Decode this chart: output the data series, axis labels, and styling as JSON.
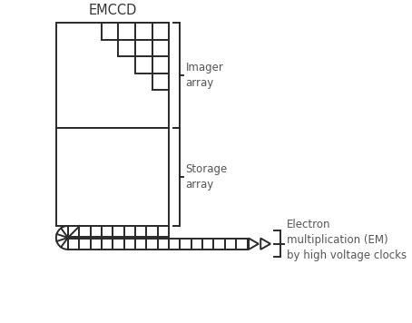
{
  "title": "EMCCD",
  "label_color": "#555555",
  "line_color": "#2a2a2a",
  "bg_color": "#ffffff",
  "imager_label": "Imager\narray",
  "storage_label": "Storage\narray",
  "em_label": "Electron\nmultiplication (EM)\nby high voltage clocks",
  "figsize": [
    4.54,
    3.56
  ],
  "dpi": 100,
  "xlim": [
    0,
    9
  ],
  "ylim": [
    0,
    9
  ]
}
